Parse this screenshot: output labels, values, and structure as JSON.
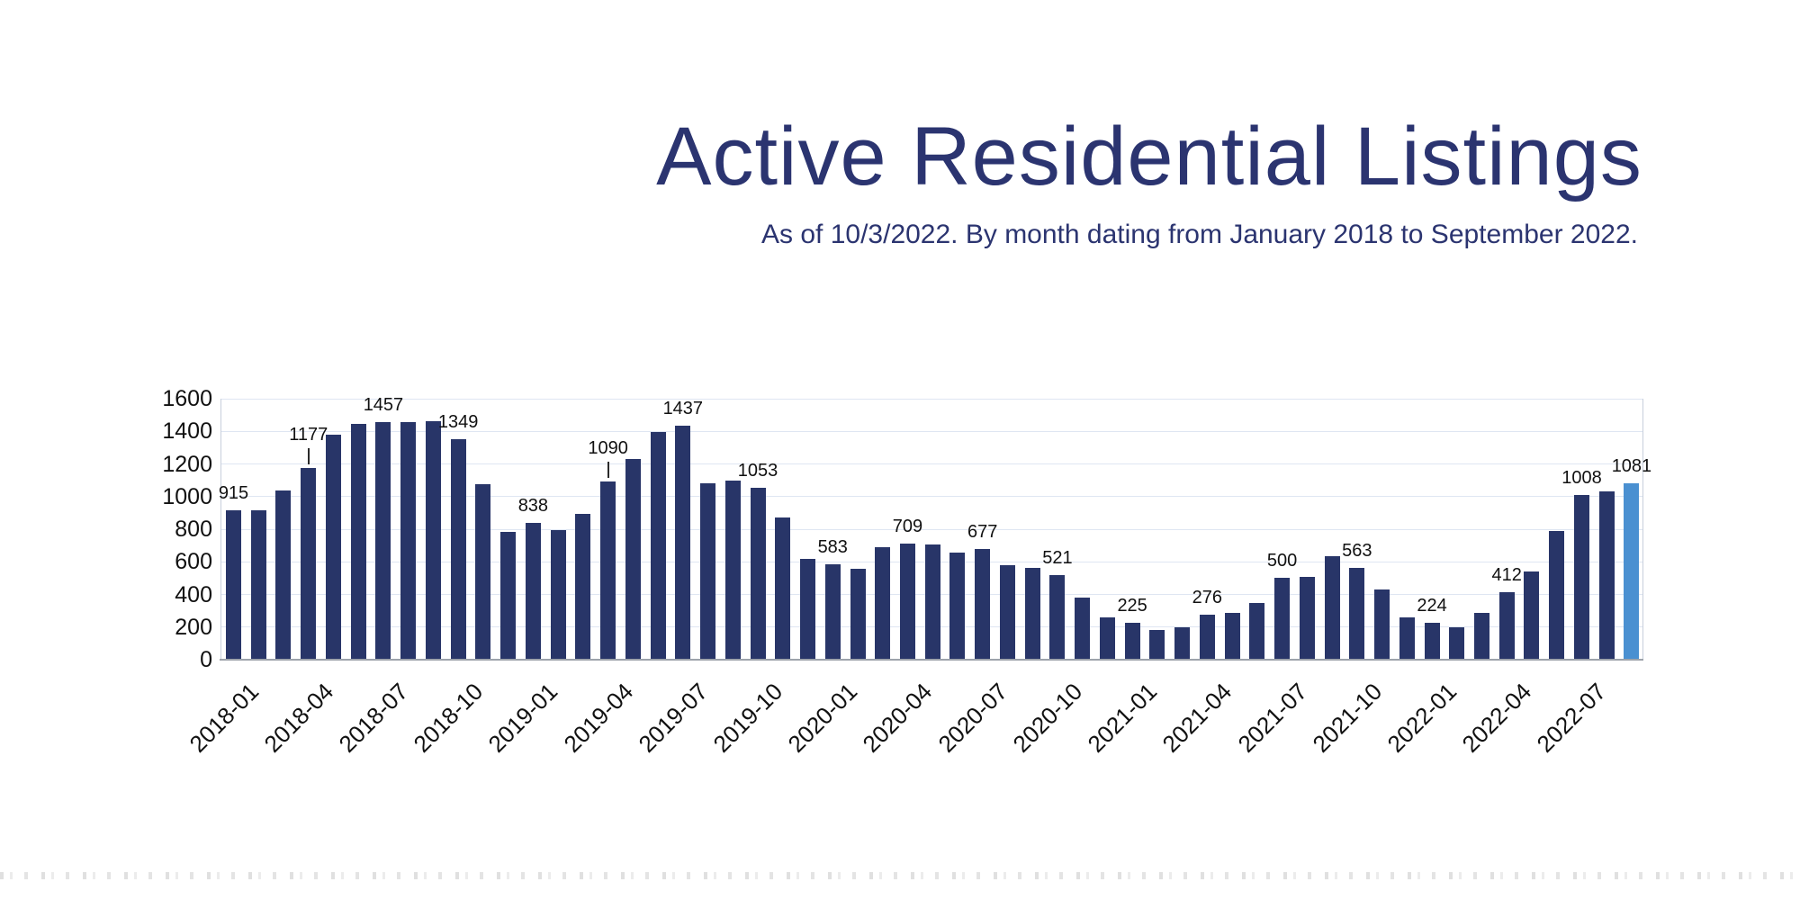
{
  "page": {
    "title": "Active Residential Listings",
    "subtitle": "As of 10/3/2022. By month dating from January 2018 to September 2022."
  },
  "chart_data": {
    "type": "bar",
    "title": "Active Residential Listings",
    "subtitle": "As of 10/3/2022. By month dating from January 2018 to September 2022.",
    "ylabel": "",
    "xlabel": "",
    "ylim": [
      0,
      1600
    ],
    "y_ticks": [
      0,
      200,
      400,
      600,
      800,
      1000,
      1200,
      1400,
      1600
    ],
    "grid": "horizontal",
    "legend": "none",
    "categories": [
      "2018-01",
      "2018-02",
      "2018-03",
      "2018-04",
      "2018-05",
      "2018-06",
      "2018-07",
      "2018-08",
      "2018-09",
      "2018-10",
      "2018-11",
      "2018-12",
      "2019-01",
      "2019-02",
      "2019-03",
      "2019-04",
      "2019-05",
      "2019-06",
      "2019-07",
      "2019-08",
      "2019-09",
      "2019-10",
      "2019-11",
      "2019-12",
      "2020-01",
      "2020-02",
      "2020-03",
      "2020-04",
      "2020-05",
      "2020-06",
      "2020-07",
      "2020-08",
      "2020-09",
      "2020-10",
      "2020-11",
      "2020-12",
      "2021-01",
      "2021-02",
      "2021-03",
      "2021-04",
      "2021-05",
      "2021-06",
      "2021-07",
      "2021-08",
      "2021-09",
      "2021-10",
      "2021-11",
      "2021-12",
      "2022-01",
      "2022-02",
      "2022-03",
      "2022-04",
      "2022-05",
      "2022-06",
      "2022-07",
      "2022-08",
      "2022-09"
    ],
    "values": [
      915,
      915,
      1040,
      1177,
      1380,
      1445,
      1457,
      1458,
      1460,
      1349,
      1075,
      785,
      838,
      795,
      895,
      1090,
      1230,
      1395,
      1437,
      1080,
      1100,
      1053,
      870,
      620,
      583,
      555,
      690,
      709,
      705,
      655,
      677,
      580,
      565,
      521,
      380,
      260,
      225,
      180,
      200,
      276,
      285,
      345,
      500,
      505,
      635,
      563,
      430,
      260,
      224,
      200,
      285,
      412,
      540,
      790,
      1008,
      1030,
      1081
    ],
    "x_ticks": [
      {
        "index": 0,
        "label": "2018-01"
      },
      {
        "index": 3,
        "label": "2018-04"
      },
      {
        "index": 6,
        "label": "2018-07"
      },
      {
        "index": 9,
        "label": "2018-10"
      },
      {
        "index": 12,
        "label": "2019-01"
      },
      {
        "index": 15,
        "label": "2019-04"
      },
      {
        "index": 18,
        "label": "2019-07"
      },
      {
        "index": 21,
        "label": "2019-10"
      },
      {
        "index": 24,
        "label": "2020-01"
      },
      {
        "index": 27,
        "label": "2020-04"
      },
      {
        "index": 30,
        "label": "2020-07"
      },
      {
        "index": 33,
        "label": "2020-10"
      },
      {
        "index": 36,
        "label": "2021-01"
      },
      {
        "index": 39,
        "label": "2021-04"
      },
      {
        "index": 42,
        "label": "2021-07"
      },
      {
        "index": 45,
        "label": "2021-10"
      },
      {
        "index": 48,
        "label": "2022-01"
      },
      {
        "index": 51,
        "label": "2022-04"
      },
      {
        "index": 54,
        "label": "2022-07"
      }
    ],
    "data_labels": [
      {
        "index": 0,
        "text": "915",
        "leader": false
      },
      {
        "index": 3,
        "text": "1177",
        "leader": true
      },
      {
        "index": 6,
        "text": "1457",
        "leader": false
      },
      {
        "index": 9,
        "text": "1349",
        "leader": false
      },
      {
        "index": 12,
        "text": "838",
        "leader": false
      },
      {
        "index": 15,
        "text": "1090",
        "leader": true
      },
      {
        "index": 18,
        "text": "1437",
        "leader": false
      },
      {
        "index": 21,
        "text": "1053",
        "leader": false
      },
      {
        "index": 24,
        "text": "583",
        "leader": false
      },
      {
        "index": 27,
        "text": "709",
        "leader": false
      },
      {
        "index": 30,
        "text": "677",
        "leader": false
      },
      {
        "index": 33,
        "text": "521",
        "leader": false
      },
      {
        "index": 36,
        "text": "225",
        "leader": false
      },
      {
        "index": 39,
        "text": "276",
        "leader": false
      },
      {
        "index": 42,
        "text": "500",
        "leader": false
      },
      {
        "index": 45,
        "text": "563",
        "leader": false
      },
      {
        "index": 48,
        "text": "224",
        "leader": false
      },
      {
        "index": 51,
        "text": "412",
        "leader": false
      },
      {
        "index": 54,
        "text": "1008",
        "leader": false
      },
      {
        "index": 56,
        "text": "1081",
        "leader": false
      }
    ],
    "highlight_index": 56,
    "colors": {
      "bar": "#283568",
      "highlight_bar": "#4a90d1",
      "title_text": "#2b3470",
      "grid_line": "#dfe6f2",
      "axis_line": "#c7cfdc",
      "baseline": "#9da3ab",
      "label_text": "#111111"
    }
  }
}
